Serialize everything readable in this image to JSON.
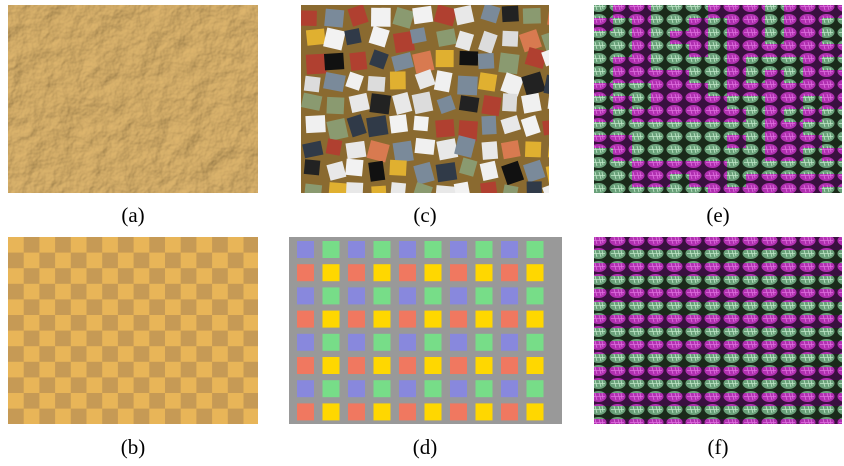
{
  "figure": {
    "panels": [
      {
        "caption": "(a)"
      },
      {
        "caption": "(c)"
      },
      {
        "caption": "(e)"
      },
      {
        "caption": "(b)"
      },
      {
        "caption": "(d)"
      },
      {
        "caption": "(f)"
      }
    ]
  }
}
